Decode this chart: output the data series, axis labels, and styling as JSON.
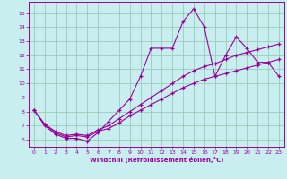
{
  "xlabel": "Windchill (Refroidissement éolien,°C)",
  "bg_color": "#c8eef0",
  "line_color": "#990099",
  "grid_color": "#99ccbb",
  "xlim": [
    -0.5,
    23.5
  ],
  "ylim": [
    5.5,
    15.8
  ],
  "xticks": [
    0,
    1,
    2,
    3,
    4,
    5,
    6,
    7,
    8,
    9,
    10,
    11,
    12,
    13,
    14,
    15,
    16,
    17,
    18,
    19,
    20,
    21,
    22,
    23
  ],
  "yticks": [
    6,
    7,
    8,
    9,
    10,
    11,
    12,
    13,
    14,
    15
  ],
  "line1_x": [
    0,
    1,
    2,
    3,
    4,
    5,
    6,
    7,
    8,
    9,
    10,
    11,
    12,
    13,
    14,
    15,
    16,
    17,
    18,
    19,
    20,
    21,
    22,
    23
  ],
  "line1_y": [
    8.1,
    7.0,
    6.4,
    6.1,
    6.1,
    5.9,
    6.5,
    7.3,
    8.1,
    8.9,
    10.5,
    12.5,
    12.5,
    12.5,
    14.4,
    15.3,
    14.0,
    10.5,
    12.0,
    13.3,
    12.5,
    11.5,
    11.5,
    10.5
  ],
  "line2_x": [
    0,
    1,
    2,
    3,
    4,
    5,
    6,
    7,
    8,
    9,
    10,
    11,
    12,
    13,
    14,
    15,
    16,
    17,
    18,
    19,
    20,
    21,
    22,
    23
  ],
  "line2_y": [
    8.1,
    7.1,
    6.5,
    6.2,
    6.3,
    6.2,
    6.6,
    6.8,
    7.2,
    7.7,
    8.1,
    8.5,
    8.9,
    9.3,
    9.7,
    10.0,
    10.3,
    10.5,
    10.7,
    10.9,
    11.1,
    11.3,
    11.5,
    11.7
  ],
  "line3_x": [
    0,
    1,
    2,
    3,
    4,
    5,
    6,
    7,
    8,
    9,
    10,
    11,
    12,
    13,
    14,
    15,
    16,
    17,
    18,
    19,
    20,
    21,
    22,
    23
  ],
  "line3_y": [
    8.1,
    7.1,
    6.6,
    6.3,
    6.4,
    6.3,
    6.7,
    7.0,
    7.5,
    8.0,
    8.5,
    9.0,
    9.5,
    10.0,
    10.5,
    10.9,
    11.2,
    11.4,
    11.7,
    12.0,
    12.2,
    12.4,
    12.6,
    12.8
  ]
}
